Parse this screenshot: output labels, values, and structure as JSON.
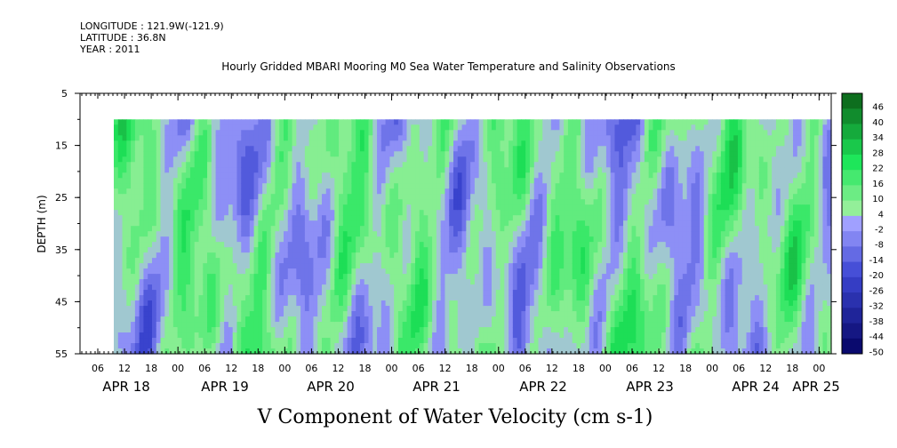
{
  "header": {
    "longitude": "LONGITUDE : 121.9W(-121.9)",
    "latitude": "LATITUDE : 36.8N",
    "year": "YEAR : 2011"
  },
  "chart_data": {
    "type": "heatmap",
    "title": "Hourly Gridded MBARI Mooring M0 Sea Water Temperature and Salinity Observations",
    "xlabel": "",
    "ylabel": "DEPTH (m)",
    "colorbar_label": "V Component of Water Velocity (cm s-1)",
    "y_ticks": [
      "5",
      "15",
      "25",
      "35",
      "45",
      "55"
    ],
    "y_range": [
      5,
      55
    ],
    "y_inverted": true,
    "data_depth_range": [
      10,
      55
    ],
    "hour_ticks": [
      "06",
      "12",
      "18",
      "00",
      "06",
      "12",
      "18",
      "00",
      "06",
      "12",
      "18",
      "00",
      "06",
      "12",
      "18",
      "00",
      "06",
      "12",
      "18",
      "00",
      "06",
      "12",
      "18",
      "00",
      "06",
      "12",
      "18",
      "00"
    ],
    "date_ticks": [
      "APR 18",
      "APR 19",
      "APR 20",
      "APR 21",
      "APR 22",
      "APR 23",
      "APR 24",
      "APR 25"
    ],
    "colorbar_ticks": [
      "46",
      "40",
      "34",
      "28",
      "22",
      "16",
      "10",
      "4",
      "-2",
      "-8",
      "-14",
      "-20",
      "-26",
      "-32",
      "-38",
      "-44",
      "-50"
    ],
    "colorbar_range": [
      -50,
      50
    ],
    "colors": {
      "strong_negative": "#0a0a6e",
      "negative": "#3c46d2",
      "weak_negative": "#a0a0ff",
      "weak_positive": "#a0f0a0",
      "positive": "#1ee65a",
      "strong_positive": "#0a5a14"
    },
    "grid": false
  }
}
